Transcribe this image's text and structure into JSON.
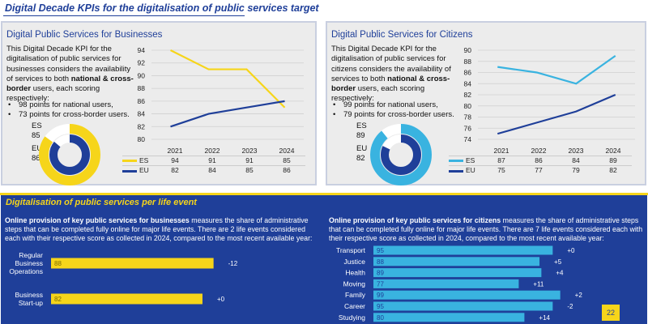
{
  "page": {
    "title": "Digital Decade KPIs for the digitalisation of public services target",
    "page_number": "22"
  },
  "colors": {
    "navy": "#1f3f99",
    "yellow": "#f6d51a",
    "cyan": "#39b3e0",
    "panel_bg": "#ececec"
  },
  "business": {
    "title": "Digital Public Services for Businesses",
    "desc_1": "This Digital Decade KPI for the digitalisation of public services for businesses considers the availability of services to both ",
    "desc_bold": "national & cross-border",
    "desc_2": " users, each scoring respectively:",
    "bullet_1": "98 points for national users,",
    "bullet_2": "73 points for cross-border users.",
    "es_label": "ES",
    "es_value": "85",
    "eu_label": "EU",
    "eu_value": "86"
  },
  "citizens": {
    "title": "Digital Public Services for Citizens",
    "desc_1": "This Digital Decade KPI for the digitalisation of public services for citizens considers the availability of services to both ",
    "desc_bold": "national & cross-border",
    "desc_2": " users, each scoring respectively:",
    "bullet_1": "99 points for national users,",
    "bullet_2": "79 points for cross-border users.",
    "es_label": "ES",
    "es_value": "89",
    "eu_label": "EU",
    "eu_value": "82"
  },
  "life_events": {
    "title": "Digitalisation of public services per life event",
    "business_desc_bold": "Online provision of key public services for businesses",
    "business_desc_rest": " measures the share of administrative steps that can be completed fully online for major life events. There are 2 life events considered each with their respective score as collected in 2024, compared to the most recent available year:",
    "citizens_desc_bold": "Online provision of key public services for citizens",
    "citizens_desc_rest": " measures the share of administrative steps that can be completed fully online for major life events. There are 7 life events considered each with their respective score as collected in 2024, compared to the most recent available year:"
  },
  "chart_data": [
    {
      "type": "pie",
      "title": "",
      "series": [
        {
          "name": "ES",
          "values": [
            85
          ]
        },
        {
          "name": "EU",
          "values": [
            86
          ]
        }
      ],
      "ylim": [
        0,
        100
      ]
    },
    {
      "type": "line",
      "title": "",
      "categories": [
        "2021",
        "2022",
        "2023",
        "2024"
      ],
      "series": [
        {
          "name": "ES",
          "values": [
            94,
            91,
            91,
            85
          ]
        },
        {
          "name": "EU",
          "values": [
            82,
            84,
            85,
            86
          ]
        }
      ],
      "ylim": [
        80,
        94
      ],
      "yticks": [
        80,
        82,
        84,
        86,
        88,
        90,
        92,
        94
      ],
      "grid": true,
      "legend": "data table below"
    },
    {
      "type": "pie",
      "title": "",
      "series": [
        {
          "name": "ES",
          "values": [
            89
          ]
        },
        {
          "name": "EU",
          "values": [
            82
          ]
        }
      ],
      "ylim": [
        0,
        100
      ]
    },
    {
      "type": "line",
      "title": "",
      "categories": [
        "2021",
        "2022",
        "2023",
        "2024"
      ],
      "series": [
        {
          "name": "ES",
          "values": [
            87,
            86,
            84,
            89
          ]
        },
        {
          "name": "EU",
          "values": [
            75,
            77,
            79,
            82
          ]
        }
      ],
      "ylim": [
        74,
        90
      ],
      "yticks": [
        74,
        76,
        78,
        80,
        82,
        84,
        86,
        88,
        90
      ],
      "grid": true,
      "legend": "data table below"
    },
    {
      "type": "bar",
      "title": "",
      "orientation": "horizontal",
      "categories": [
        "Regular Business Operations",
        "Business Start-up"
      ],
      "values": [
        88,
        82
      ],
      "changes": [
        "-12",
        "+0"
      ],
      "xlim": [
        0,
        100
      ]
    },
    {
      "type": "bar",
      "title": "",
      "orientation": "horizontal",
      "categories": [
        "Transport",
        "Justice",
        "Health",
        "Moving",
        "Family",
        "Career",
        "Studying"
      ],
      "values": [
        95,
        88,
        89,
        77,
        99,
        95,
        80
      ],
      "changes": [
        "+0",
        "+5",
        "+4",
        "+11",
        "+2",
        "-2",
        "+14"
      ],
      "xlim": [
        0,
        100
      ]
    }
  ]
}
